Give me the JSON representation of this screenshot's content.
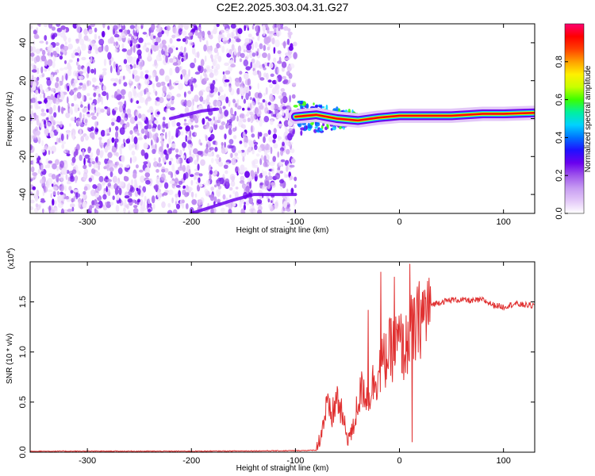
{
  "title": "C2E2.2025.303.04.31.G27",
  "chart_data": [
    {
      "type": "heatmap",
      "name": "spectrogram",
      "xlabel": "Height of straight line (km)",
      "ylabel": "Frequency (Hz)",
      "xlim": [
        -355,
        130
      ],
      "ylim": [
        -50,
        50
      ],
      "xticks": [
        -300,
        -200,
        -100,
        0,
        100
      ],
      "xtick_labels": [
        "-300",
        "-200",
        "-100",
        "0",
        "100"
      ],
      "yticks": [
        -40,
        -20,
        0,
        20,
        40
      ],
      "ytick_labels": [
        "-40",
        "-20",
        "0",
        "20",
        "40"
      ],
      "noise_region_x": [
        -355,
        -100
      ],
      "signal_ridge": [
        {
          "x": -100,
          "y": 1
        },
        {
          "x": -80,
          "y": 2
        },
        {
          "x": -60,
          "y": 0
        },
        {
          "x": -40,
          "y": -1
        },
        {
          "x": -20,
          "y": 0.5
        },
        {
          "x": 0,
          "y": 1.5
        },
        {
          "x": 20,
          "y": 1.5
        },
        {
          "x": 50,
          "y": 1.5
        },
        {
          "x": 80,
          "y": 2.5
        },
        {
          "x": 100,
          "y": 2.5
        },
        {
          "x": 130,
          "y": 3
        }
      ],
      "secondary_tracks": [
        {
          "points": [
            {
              "x": -200,
              "y": -50
            },
            {
              "x": -160,
              "y": -43
            },
            {
              "x": -140,
              "y": -40
            },
            {
              "x": -100,
              "y": -40
            }
          ]
        },
        {
          "points": [
            {
              "x": -220,
              "y": 0
            },
            {
              "x": -190,
              "y": 4
            },
            {
              "x": -175,
              "y": 5
            }
          ]
        }
      ],
      "colorbar": {
        "label": "Normalized spectral amplitude",
        "range": [
          0,
          1
        ],
        "ticks": [
          0.0,
          0.2,
          0.4,
          0.6,
          0.8
        ],
        "tick_labels": [
          "0.0",
          "0.2",
          "0.4",
          "0.6",
          "0.8"
        ],
        "colors": [
          "#ffffff",
          "#e3c8f8",
          "#c79cf2",
          "#9f55ec",
          "#6a00ee",
          "#1f10ff",
          "#0072ff",
          "#00d2ff",
          "#00f0a0",
          "#3cff00",
          "#c8ff00",
          "#fff000",
          "#ffa000",
          "#ff4000",
          "#ff0000",
          "#ff0070"
        ]
      }
    },
    {
      "type": "line",
      "name": "snr",
      "xlabel": "Height of straight line (km)",
      "ylabel": "SNR (10 * v/v)",
      "y_scale_label": "(x10",
      "y_scale_exponent": "4",
      "xlim": [
        -355,
        130
      ],
      "ylim": [
        0,
        1.9
      ],
      "xticks": [
        -300,
        -200,
        -100,
        0,
        100
      ],
      "xtick_labels": [
        "-300",
        "-200",
        "-100",
        "0",
        "100"
      ],
      "yticks": [
        0.0,
        0.5,
        1.0,
        1.5
      ],
      "ytick_labels": [
        "0.0",
        "0.5",
        "1.0",
        "1.5"
      ],
      "line_color": "#e03030",
      "series": [
        {
          "name": "SNR",
          "points": [
            {
              "x": -355,
              "y": 0.01
            },
            {
              "x": -300,
              "y": 0.01
            },
            {
              "x": -200,
              "y": 0.01
            },
            {
              "x": -100,
              "y": 0.015
            },
            {
              "x": -80,
              "y": 0.02
            },
            {
              "x": -75,
              "y": 0.2
            },
            {
              "x": -70,
              "y": 0.45
            },
            {
              "x": -65,
              "y": 0.35
            },
            {
              "x": -60,
              "y": 0.55
            },
            {
              "x": -55,
              "y": 0.35
            },
            {
              "x": -50,
              "y": 0.15
            },
            {
              "x": -45,
              "y": 0.2
            },
            {
              "x": -40,
              "y": 0.5
            },
            {
              "x": -35,
              "y": 0.65
            },
            {
              "x": -30,
              "y": 0.55
            },
            {
              "x": -25,
              "y": 0.7
            },
            {
              "x": -20,
              "y": 0.8
            },
            {
              "x": -15,
              "y": 0.9
            },
            {
              "x": -10,
              "y": 1.0
            },
            {
              "x": -5,
              "y": 1.05
            },
            {
              "x": 0,
              "y": 1.1
            },
            {
              "x": 5,
              "y": 1.0
            },
            {
              "x": 10,
              "y": 1.2
            },
            {
              "x": 15,
              "y": 1.2
            },
            {
              "x": 20,
              "y": 1.35
            },
            {
              "x": 25,
              "y": 1.4
            },
            {
              "x": 30,
              "y": 1.47
            },
            {
              "x": 40,
              "y": 1.5
            },
            {
              "x": 50,
              "y": 1.52
            },
            {
              "x": 60,
              "y": 1.52
            },
            {
              "x": 70,
              "y": 1.51
            },
            {
              "x": 80,
              "y": 1.52
            },
            {
              "x": 90,
              "y": 1.47
            },
            {
              "x": 100,
              "y": 1.45
            },
            {
              "x": 110,
              "y": 1.48
            },
            {
              "x": 120,
              "y": 1.47
            },
            {
              "x": 130,
              "y": 1.46
            }
          ],
          "spikes": [
            {
              "x": -30,
              "y": 1.42
            },
            {
              "x": -18,
              "y": 1.8
            },
            {
              "x": -5,
              "y": 1.75
            },
            {
              "x": 10,
              "y": 1.88
            },
            {
              "x": 12,
              "y": 0.1
            }
          ]
        }
      ]
    }
  ]
}
